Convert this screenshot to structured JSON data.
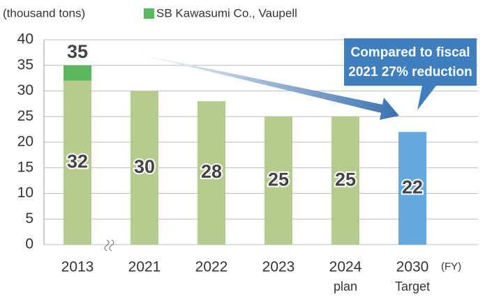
{
  "chart_data": {
    "type": "stacked_bar",
    "y_axis_label": "(thousand tons)",
    "x_axis_unit": "(FY)",
    "categories": [
      "2013",
      "2021",
      "2022",
      "2023",
      "2024",
      "2030"
    ],
    "category_notes": [
      null,
      null,
      null,
      null,
      "plan",
      "Target"
    ],
    "series": [
      {
        "color": "#b5cc8e",
        "values": [
          32,
          30,
          28,
          25,
          25,
          null
        ],
        "data_labels": true
      },
      {
        "color": "#5cb85c",
        "name": "SB Kawasumi Co., Vaupell",
        "values": [
          3,
          null,
          null,
          null,
          null,
          null
        ],
        "data_labels": false
      },
      {
        "color": "#64a8e0",
        "values": [
          null,
          null,
          null,
          null,
          null,
          22
        ],
        "data_labels": true
      }
    ],
    "total_labels": [
      35,
      null,
      null,
      null,
      null,
      null
    ],
    "annotation_lines": [
      "Compared to fiscal",
      "2021 27% reduction"
    ],
    "ylim": [
      0,
      40
    ],
    "yticks": [
      0,
      5,
      10,
      15,
      20,
      25,
      30,
      35,
      40
    ],
    "grid": true
  }
}
